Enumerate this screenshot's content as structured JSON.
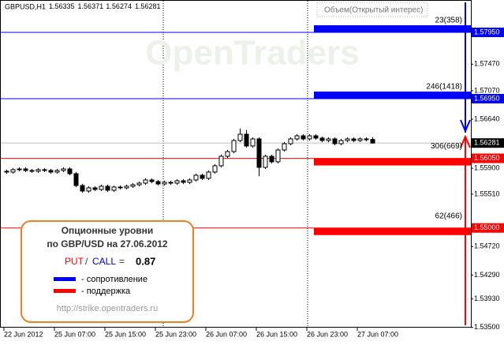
{
  "chart_data": {
    "type": "candlestick",
    "title": "GBPUSD,H1",
    "indicator_label": "Объем(Открытый интерес)",
    "watermark": "OpenTraders",
    "categories": [
      "22 Jun 2012",
      null,
      null,
      null,
      null,
      null,
      null,
      null,
      "25 Jun 07:00",
      null,
      null,
      null,
      null,
      null,
      null,
      null,
      "25 Jun 15:00",
      null,
      null,
      null,
      null,
      null,
      null,
      null,
      "25 Jun 23:00",
      null,
      null,
      null,
      null,
      null,
      null,
      null,
      "26 Jun 07:00",
      null,
      null,
      null,
      null,
      null,
      null,
      null,
      "26 Jun 15:00",
      null,
      null,
      null,
      null,
      null,
      null,
      null,
      "26 Jun 23:00",
      null,
      null,
      null,
      null,
      null,
      null,
      null,
      "27 Jun 07:00",
      null,
      null
    ],
    "open": [
      1.55855,
      1.55843,
      1.55879,
      1.5589,
      1.55867,
      1.55855,
      1.55879,
      1.55867,
      1.55843,
      1.55867,
      1.5589,
      1.55819,
      1.5564,
      1.55557,
      1.55605,
      1.55581,
      1.55629,
      1.55569,
      1.55617,
      1.55605,
      1.55629,
      1.55652,
      1.55676,
      1.55724,
      1.557,
      1.55664,
      1.55688,
      1.55676,
      1.55712,
      1.55688,
      1.55724,
      1.55795,
      1.55748,
      1.55843,
      1.55938,
      1.56081,
      1.56152,
      1.56319,
      1.56414,
      1.56236,
      1.56343,
      1.55914,
      1.56081,
      1.55998,
      1.56176,
      1.56271,
      1.56343,
      1.5639,
      1.56343,
      1.5639,
      1.56355,
      1.56319,
      1.56343,
      1.56271,
      1.56319,
      1.56343,
      1.56319,
      1.56343,
      1.56335
    ],
    "high": [
      1.5588,
      1.55904,
      1.55915,
      1.55915,
      1.55892,
      1.55904,
      1.55904,
      1.55892,
      1.55892,
      1.55915,
      1.55915,
      1.55844,
      1.55665,
      1.5563,
      1.5563,
      1.55654,
      1.55654,
      1.55642,
      1.55642,
      1.55654,
      1.55677,
      1.55701,
      1.55749,
      1.55749,
      1.55725,
      1.55713,
      1.55713,
      1.55737,
      1.55737,
      1.55749,
      1.5582,
      1.5582,
      1.55868,
      1.55963,
      1.56106,
      1.56177,
      1.56344,
      1.565,
      1.5648,
      1.56368,
      1.56368,
      1.56106,
      1.56106,
      1.56201,
      1.56296,
      1.56368,
      1.56415,
      1.56415,
      1.56415,
      1.56415,
      1.5638,
      1.56368,
      1.56368,
      1.56344,
      1.56368,
      1.56368,
      1.56368,
      1.56368,
      1.56371
    ],
    "low": [
      1.55818,
      1.55818,
      1.55854,
      1.55842,
      1.5583,
      1.5583,
      1.55842,
      1.55818,
      1.55818,
      1.55842,
      1.55794,
      1.55615,
      1.55532,
      1.55532,
      1.55556,
      1.55556,
      1.55544,
      1.55544,
      1.5558,
      1.5558,
      1.55604,
      1.55627,
      1.55651,
      1.55675,
      1.55639,
      1.55639,
      1.55651,
      1.55651,
      1.55663,
      1.55663,
      1.55699,
      1.55723,
      1.55723,
      1.55818,
      1.55913,
      1.56056,
      1.56127,
      1.56294,
      1.56211,
      1.56211,
      1.5578,
      1.55889,
      1.55973,
      1.55973,
      1.56151,
      1.56246,
      1.56318,
      1.56318,
      1.56318,
      1.5633,
      1.56294,
      1.56294,
      1.56246,
      1.56246,
      1.56294,
      1.56294,
      1.56294,
      1.56306,
      1.56274
    ],
    "close": [
      1.55843,
      1.55879,
      1.5589,
      1.55867,
      1.55855,
      1.55879,
      1.55867,
      1.55843,
      1.55867,
      1.5589,
      1.55819,
      1.5564,
      1.55557,
      1.55605,
      1.55581,
      1.55629,
      1.55569,
      1.55617,
      1.55605,
      1.55629,
      1.55652,
      1.55676,
      1.55724,
      1.557,
      1.55664,
      1.55688,
      1.55676,
      1.55712,
      1.55688,
      1.55724,
      1.55795,
      1.55748,
      1.55843,
      1.55938,
      1.56081,
      1.56152,
      1.56319,
      1.56414,
      1.56236,
      1.56343,
      1.55914,
      1.56081,
      1.55998,
      1.56176,
      1.56271,
      1.56343,
      1.5639,
      1.56343,
      1.5639,
      1.56355,
      1.56319,
      1.56343,
      1.56271,
      1.56319,
      1.56343,
      1.56319,
      1.56343,
      1.56331,
      1.56281
    ],
    "ylim": [
      1.53497,
      1.58438
    ],
    "yticks": [
      {
        "value": 1.5747,
        "label": "1.57470"
      },
      {
        "value": 1.5707,
        "label": "1.57070"
      },
      {
        "value": 1.5664,
        "label": "1.56640"
      },
      {
        "value": 1.559,
        "label": "1.55900"
      },
      {
        "value": 1.5551,
        "label": "1.55510"
      },
      {
        "value": 1.5472,
        "label": "1.54720"
      },
      {
        "value": 1.5429,
        "label": "1.54290"
      },
      {
        "value": 1.5393,
        "label": "1.53930"
      },
      {
        "value": 1.535,
        "label": "1.53500"
      }
    ],
    "last_price": {
      "value": 1.56281,
      "label": "1.56281"
    },
    "levels": [
      {
        "value": 1.5795,
        "label": "1.57950",
        "volume": "23(358)",
        "color": "#0000ff",
        "side": "above"
      },
      {
        "value": 1.5695,
        "label": "1.56950",
        "volume": "246(1418)",
        "color": "#0000ff",
        "side": "above"
      },
      {
        "value": 1.5605,
        "label": "1.56050",
        "volume": "306(669)",
        "color": "#ff0000",
        "side": "below"
      },
      {
        "value": 1.55,
        "label": "1.55000",
        "volume": "62(466)",
        "color": "#ff0000",
        "side": "below"
      }
    ],
    "grid": false
  },
  "info_box": {
    "title_1": "Опционные уровни",
    "title_2": "по GBP/USD на 27.06.2012",
    "put": "PUT",
    "slash": "/",
    "call": "CALL",
    "equals": "=",
    "put_call_ratio": 0.87,
    "resistance": "- сопротивление",
    "support": "- поддержка",
    "url": "http://strike.opentraders.ru"
  }
}
